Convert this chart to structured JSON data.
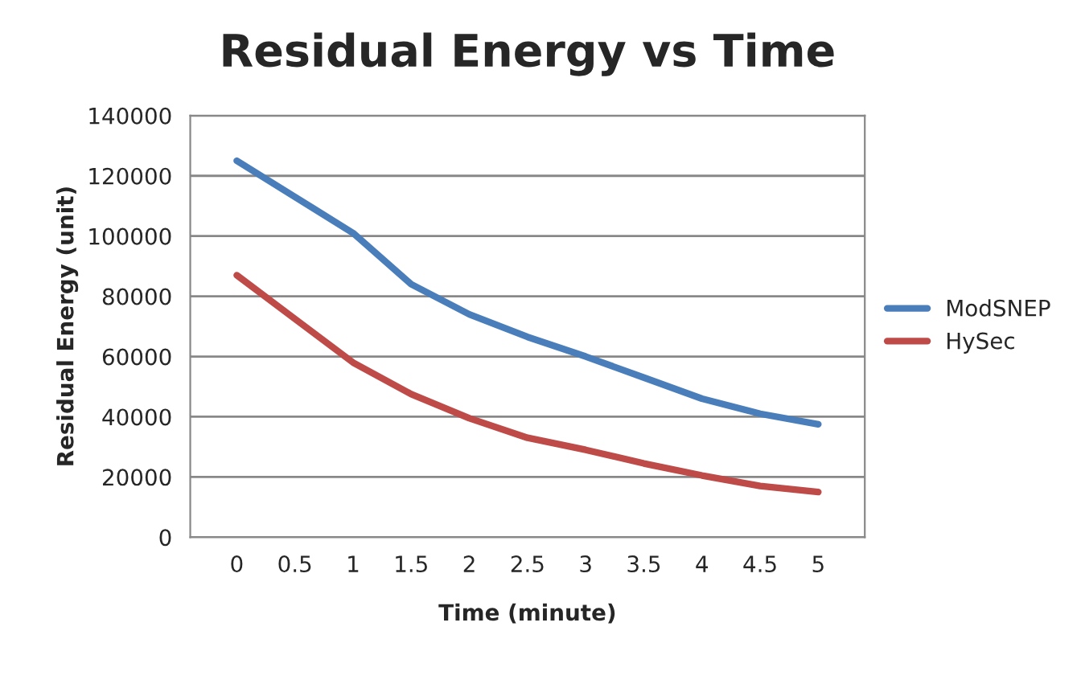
{
  "chart_data": {
    "type": "line",
    "title": "Residual Energy vs Time",
    "xlabel": "Time (minute)",
    "ylabel": "Residual Energy (unit)",
    "categories": [
      "0",
      "0.5",
      "1",
      "1.5",
      "2",
      "2.5",
      "3",
      "3.5",
      "4",
      "4.5",
      "5"
    ],
    "series": [
      {
        "name": "ModSNEP",
        "color": "#4a7ebb",
        "values": [
          125000,
          113000,
          101000,
          84000,
          74000,
          66500,
          60000,
          53000,
          46000,
          41000,
          37500
        ]
      },
      {
        "name": "HySec",
        "color": "#be4b48",
        "values": [
          87000,
          72500,
          58000,
          47500,
          39500,
          33000,
          29000,
          24500,
          20500,
          17000,
          15000
        ]
      }
    ],
    "ylim": [
      0,
      140000
    ],
    "yticks": [
      0,
      20000,
      40000,
      60000,
      80000,
      100000,
      120000,
      140000
    ],
    "grid": "y",
    "legend": "right",
    "marker": "none",
    "line_style": "solid"
  }
}
